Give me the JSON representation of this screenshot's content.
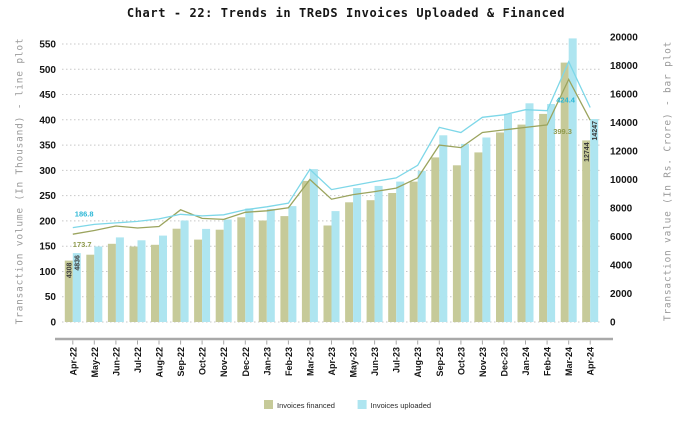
{
  "title": "Chart - 22: Trends in TReDS Invoices Uploaded & Financed",
  "left_axis_title": "Transaction volume (In Thousand) - line plot",
  "right_axis_title": "Transaction value (In Rs. Crore) - bar plot",
  "chart_data": {
    "type": "bar+line combo",
    "title": "Chart - 22: Trends in TReDS Invoices Uploaded & Financed",
    "categories": [
      "Apr-22",
      "May-22",
      "Jun-22",
      "Jul-22",
      "Aug-22",
      "Sep-22",
      "Oct-22",
      "Nov-22",
      "Dec-22",
      "Jan-23",
      "Feb-23",
      "Mar-23",
      "Apr-23",
      "May-23",
      "Jun-23",
      "Jul-23",
      "Aug-23",
      "Sep-23",
      "Oct-23",
      "Nov-23",
      "Dec-23",
      "Jan-24",
      "Feb-24",
      "Mar-24",
      "Apr-24"
    ],
    "left_axis": {
      "label": "Transaction volume (In Thousand) - line plot",
      "min": 0,
      "max": 550,
      "step": 50
    },
    "right_axis": {
      "label": "Transaction value (In Rs. Crore) - bar plot",
      "min": 0,
      "max": 20000,
      "step": 2000
    },
    "grid": "horizontal dotted",
    "legend_position": "bottom center",
    "value_labels_shown": "first and last point of every series only",
    "bar_series": [
      {
        "name": "Invoices financed",
        "axis": "right",
        "color": "#c6ca99",
        "values": [
          4308,
          4720,
          5490,
          5300,
          5420,
          6550,
          5780,
          6480,
          7350,
          7120,
          7430,
          9900,
          6770,
          8400,
          8550,
          9050,
          9850,
          11550,
          11000,
          11900,
          13300,
          13850,
          14600,
          18200,
          12744
        ]
      },
      {
        "name": "Invoices uploaded",
        "axis": "right",
        "color": "#aee5f0",
        "values": [
          4836,
          5300,
          5940,
          5730,
          6060,
          7120,
          6530,
          7190,
          7970,
          7940,
          8130,
          10730,
          7780,
          9400,
          9550,
          9850,
          10600,
          13100,
          12500,
          12950,
          14600,
          15350,
          15300,
          19900,
          14247
        ]
      }
    ],
    "line_series": [
      {
        "name": "Invoices financed (volume)",
        "axis": "left",
        "color": "#9ba45e",
        "label_color": "#8f9a4d",
        "values": [
          173.7,
          181,
          190,
          186,
          189,
          222,
          205,
          203,
          217,
          220,
          226,
          282,
          243,
          252,
          258,
          265,
          285,
          350,
          345,
          375,
          380,
          385,
          390,
          480,
          399.3
        ]
      },
      {
        "name": "Invoices uploaded (volume)",
        "axis": "left",
        "color": "#7ed7e8",
        "label_color": "#2bb7d6",
        "values": [
          186.8,
          193,
          196,
          199,
          204,
          213,
          210,
          212,
          222,
          228,
          235,
          302,
          262,
          270,
          278,
          285,
          310,
          385,
          375,
          405,
          410,
          420,
          418,
          515,
          424.4
        ]
      }
    ],
    "legend": [
      {
        "label": "Invoices financed",
        "color": "#c6ca99"
      },
      {
        "label": "Invoices uploaded",
        "color": "#aee5f0"
      }
    ]
  }
}
